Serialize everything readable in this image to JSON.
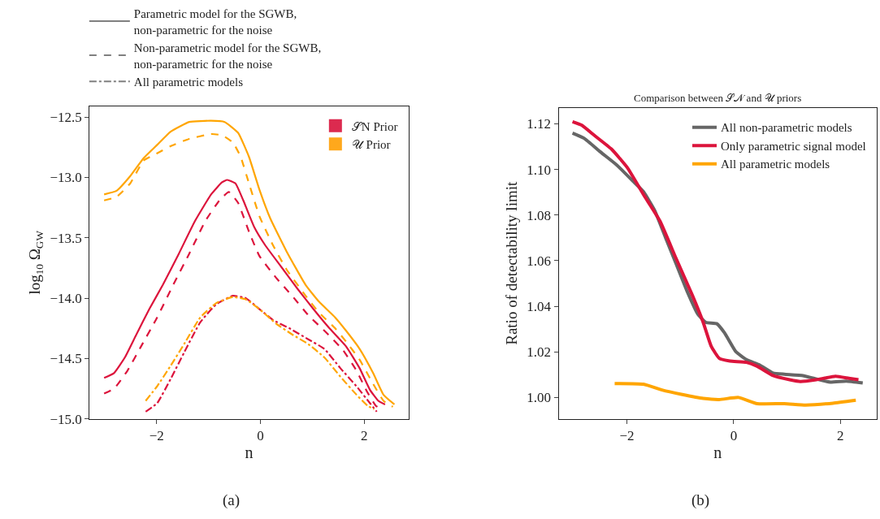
{
  "chart_data": [
    {
      "type": "line",
      "xlabel": "n",
      "ylabel": "log$_{10}$ Ω$_{GW}$",
      "xlim": [
        -3.29,
        2.85
      ],
      "ylim": [
        -15.0,
        -12.41
      ],
      "xticks": [
        {
          "value": -2,
          "label": "−2"
        },
        0,
        2
      ],
      "yticks": [
        {
          "value": -15,
          "label": "−15.0"
        },
        {
          "value": -14.5,
          "label": "−14.5"
        },
        {
          "value": -14,
          "label": "−14.0"
        },
        {
          "value": -13.5,
          "label": "−13.5"
        },
        {
          "value": -13,
          "label": "−13.0"
        },
        {
          "value": -12.5,
          "label": "−12.5"
        }
      ],
      "legend": "top right",
      "annotations": [
        "(a)"
      ],
      "series": [
        {
          "color": "#ffa500",
          "line_style": "solid",
          "x": [
            -3.01,
            -2.77,
            -2.51,
            -2.25,
            -1.99,
            -1.73,
            -1.37,
            -0.95,
            -0.69,
            -0.43,
            -0.22,
            -0.02,
            0.19,
            0.5,
            0.87,
            1.13,
            1.44,
            1.65,
            1.91,
            2.17,
            2.37,
            2.58
          ],
          "values": [
            -13.14,
            -13.11,
            -12.99,
            -12.84,
            -12.73,
            -12.62,
            -12.54,
            -12.53,
            -12.54,
            -12.63,
            -12.83,
            -13.1,
            -13.34,
            -13.61,
            -13.89,
            -14.03,
            -14.16,
            -14.27,
            -14.42,
            -14.62,
            -14.8,
            -14.88
          ]
        },
        {
          "color": "#ffa500",
          "line_style": "dashed",
          "x": [
            -3.01,
            -2.77,
            -2.51,
            -2.25,
            -1.99,
            -1.73,
            -1.37,
            -0.95,
            -0.74,
            -0.53,
            -0.38,
            -0.22,
            -0.02,
            0.24,
            0.5,
            0.87,
            1.13,
            1.44,
            1.65,
            1.91,
            2.17,
            2.37,
            2.55
          ],
          "values": [
            -13.19,
            -13.16,
            -13.05,
            -12.86,
            -12.8,
            -12.74,
            -12.68,
            -12.64,
            -12.65,
            -12.71,
            -12.83,
            -13.05,
            -13.32,
            -13.56,
            -13.76,
            -13.98,
            -14.12,
            -14.25,
            -14.36,
            -14.51,
            -14.71,
            -14.85,
            -14.9
          ]
        },
        {
          "color": "#dc143c",
          "line_style": "solid",
          "x": [
            -3.01,
            -2.82,
            -2.61,
            -2.4,
            -2.14,
            -1.88,
            -1.57,
            -1.26,
            -0.95,
            -0.74,
            -0.64,
            -0.48,
            -0.33,
            -0.12,
            0.09,
            0.4,
            0.71,
            1.02,
            1.33,
            1.65,
            1.91,
            2.11,
            2.27,
            2.4
          ],
          "values": [
            -14.66,
            -14.62,
            -14.49,
            -14.31,
            -14.09,
            -13.89,
            -13.63,
            -13.36,
            -13.14,
            -13.04,
            -13.02,
            -13.05,
            -13.19,
            -13.41,
            -13.56,
            -13.74,
            -13.92,
            -14.09,
            -14.25,
            -14.4,
            -14.58,
            -14.76,
            -14.85,
            -14.88
          ]
        },
        {
          "color": "#dc143c",
          "line_style": "dashed",
          "x": [
            -3.01,
            -2.82,
            -2.56,
            -2.3,
            -1.99,
            -1.68,
            -1.37,
            -1.06,
            -0.79,
            -0.61,
            -0.43,
            -0.22,
            -0.02,
            0.3,
            0.61,
            0.92,
            1.28,
            1.59,
            1.85,
            2.06,
            2.22,
            2.29
          ],
          "values": [
            -14.79,
            -14.75,
            -14.6,
            -14.4,
            -14.16,
            -13.89,
            -13.63,
            -13.36,
            -13.19,
            -13.12,
            -13.21,
            -13.45,
            -13.65,
            -13.83,
            -13.98,
            -14.14,
            -14.29,
            -14.43,
            -14.6,
            -14.78,
            -14.89,
            -14.91
          ]
        },
        {
          "color": "#dc143c",
          "line_style": "dashdot",
          "x": [
            -2.21,
            -1.99,
            -1.73,
            -1.47,
            -1.16,
            -0.85,
            -0.53,
            -0.28,
            -0.02,
            0.24,
            0.56,
            0.92,
            1.23,
            1.54,
            1.85,
            2.11,
            2.24
          ],
          "values": [
            -14.94,
            -14.87,
            -14.67,
            -14.45,
            -14.2,
            -14.05,
            -13.98,
            -14.0,
            -14.09,
            -14.18,
            -14.25,
            -14.34,
            -14.42,
            -14.58,
            -14.73,
            -14.87,
            -14.94
          ]
        },
        {
          "color": "#ffa500",
          "line_style": "dashdot",
          "x": [
            -2.21,
            -1.99,
            -1.73,
            -1.47,
            -1.16,
            -0.85,
            -0.53,
            -0.28,
            -0.02,
            0.3,
            0.61,
            0.92,
            1.23,
            1.54,
            1.85,
            2.06,
            2.19
          ],
          "values": [
            -14.85,
            -14.73,
            -14.56,
            -14.38,
            -14.16,
            -14.04,
            -13.99,
            -14.01,
            -14.09,
            -14.21,
            -14.3,
            -14.38,
            -14.49,
            -14.65,
            -14.8,
            -14.89,
            -14.92
          ]
        },
        {
          "name": "Parametric model for the SGWB,\nnon-parametric for the noise",
          "color": "#808080",
          "line_style": "solid"
        },
        {
          "name": "Non-parametric model for the SGWB,\nnon-parametric for the noise",
          "color": "#808080",
          "line_style": "dashed"
        },
        {
          "name": "All parametric models",
          "color": "#808080",
          "line_style": "dashdot"
        },
        {
          "name": "𝒮N Prior",
          "type": "scatter",
          "marker": "square",
          "color": "#dc2a4f"
        },
        {
          "name": "𝒰 Prior",
          "type": "scatter",
          "marker": "square",
          "color": "#ffa81c"
        }
      ]
    },
    {
      "type": "line",
      "title": "Comparison between 𝒮𝒩 and 𝒰 priors",
      "xlabel": "n",
      "ylabel": "Ratio of detectability limit",
      "xlim": [
        -3.28,
        2.68
      ],
      "ylim": [
        0.9906,
        1.127
      ],
      "xticks": [
        {
          "value": -2,
          "label": "−2"
        },
        0,
        2
      ],
      "yticks": [
        {
          "value": 1.0,
          "label": "1.00"
        },
        1.02,
        1.04,
        1.06,
        1.08,
        {
          "value": 1.1,
          "label": "1.10"
        },
        1.12
      ],
      "legend": "top right",
      "annotations": [
        "(b)"
      ],
      "series": [
        {
          "name": "All non-parametric models",
          "color": "#666666",
          "line_style": "solid",
          "x": [
            -3.02,
            -2.8,
            -2.5,
            -2.19,
            -1.89,
            -1.69,
            -1.48,
            -1.28,
            -1.08,
            -0.88,
            -0.67,
            -0.52,
            -0.32,
            -0.17,
            0.04,
            0.24,
            0.49,
            0.74,
            0.95,
            1.3,
            1.5,
            1.81,
            2.11,
            2.42
          ],
          "values": [
            1.1159,
            1.1136,
            1.1077,
            1.1019,
            1.0949,
            1.0902,
            1.082,
            1.0703,
            1.0587,
            1.047,
            1.0365,
            1.0329,
            1.0324,
            1.0283,
            1.0201,
            1.0166,
            1.0142,
            1.0107,
            1.0102,
            1.0096,
            1.0084,
            1.0067,
            1.0072,
            1.0064
          ]
        },
        {
          "name": "Only parametric signal model",
          "color": "#dc143c",
          "line_style": "solid",
          "x": [
            -3.02,
            -2.85,
            -2.6,
            -2.29,
            -1.99,
            -1.69,
            -1.38,
            -1.08,
            -0.77,
            -0.57,
            -0.42,
            -0.27,
            -0.07,
            0.24,
            0.44,
            0.74,
            1.05,
            1.25,
            1.55,
            1.91,
            2.16,
            2.34
          ],
          "values": [
            1.1209,
            1.1194,
            1.1147,
            1.1089,
            1.1007,
            1.089,
            1.0773,
            1.061,
            1.0446,
            1.0329,
            1.0224,
            1.0172,
            1.016,
            1.0154,
            1.0137,
            1.0096,
            1.0078,
            1.007,
            1.0078,
            1.0093,
            1.0084,
            1.0078
          ]
        },
        {
          "name": "All parametric models",
          "color": "#ffa500",
          "line_style": "solid",
          "x": [
            -2.23,
            -1.69,
            -1.33,
            -0.98,
            -0.57,
            -0.27,
            0.09,
            0.44,
            0.95,
            1.35,
            1.86,
            2.29
          ],
          "values": [
            1.0061,
            1.0058,
            1.0032,
            1.0014,
            0.9996,
            0.9991,
            1.0,
            0.9973,
            0.9973,
            0.9967,
            0.9975,
            0.9988
          ]
        }
      ]
    }
  ]
}
